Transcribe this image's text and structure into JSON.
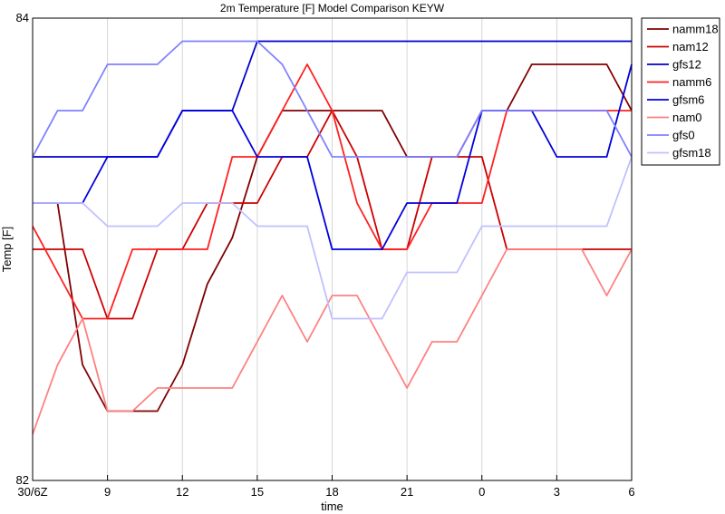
{
  "chart_data": {
    "type": "line",
    "title": "2m Temperature [F] Model Comparison KEYW",
    "xlabel": "time",
    "ylabel": "Temp [F]",
    "ylim": [
      82,
      84
    ],
    "yticks": [
      "82",
      "84"
    ],
    "xticks": [
      "30/6Z",
      "9",
      "12",
      "15",
      "18",
      "21",
      "0",
      "3",
      "6"
    ],
    "x": [
      "30/6Z",
      "7",
      "8",
      "9",
      "10",
      "11",
      "12",
      "13",
      "14",
      "15",
      "16",
      "17",
      "18",
      "19",
      "20",
      "21",
      "22",
      "23",
      "0",
      "1",
      "2",
      "3",
      "4",
      "5",
      "6"
    ],
    "grid": true,
    "legend_position": "top-right",
    "series": [
      {
        "name": "namm18",
        "color": "#800000",
        "values": [
          83.2,
          83.2,
          82.5,
          82.3,
          82.3,
          82.3,
          82.5,
          82.85,
          83.05,
          83.4,
          83.6,
          83.6,
          83.6,
          83.6,
          83.6,
          83.4,
          83.4,
          83.4,
          83.6,
          83.6,
          83.8,
          83.8,
          83.8,
          83.8,
          83.6
        ]
      },
      {
        "name": "nam12",
        "color": "#cc0000",
        "values": [
          83.0,
          83.0,
          83.0,
          82.7,
          82.7,
          83.0,
          83.0,
          83.2,
          83.2,
          83.2,
          83.4,
          83.4,
          83.6,
          83.4,
          83.0,
          83.0,
          83.4,
          83.4,
          83.4,
          83.0,
          83.0,
          83.0,
          83.0,
          83.0,
          83.0
        ]
      },
      {
        "name": "gfs12",
        "color": "#0000cc",
        "values": [
          83.4,
          83.4,
          83.4,
          83.4,
          83.4,
          83.4,
          83.6,
          83.6,
          83.6,
          83.9,
          83.9,
          83.9,
          83.9,
          83.9,
          83.9,
          83.9,
          83.9,
          83.9,
          83.9,
          83.9,
          83.9,
          83.9,
          83.9,
          83.9,
          83.9
        ]
      },
      {
        "name": "namm6",
        "color": "#ff2020",
        "values": [
          83.1,
          82.9,
          82.7,
          82.7,
          83.0,
          83.0,
          83.0,
          83.0,
          83.4,
          83.4,
          83.6,
          83.8,
          83.6,
          83.2,
          83.0,
          83.0,
          83.2,
          83.2,
          83.2,
          83.6,
          83.6,
          83.6,
          83.6,
          83.6,
          83.6
        ]
      },
      {
        "name": "gfsm6",
        "color": "#0000dd",
        "values": [
          83.2,
          83.2,
          83.2,
          83.4,
          83.4,
          83.4,
          83.6,
          83.6,
          83.6,
          83.4,
          83.4,
          83.4,
          83.0,
          83.0,
          83.0,
          83.2,
          83.2,
          83.2,
          83.6,
          83.6,
          83.6,
          83.4,
          83.4,
          83.4,
          83.8
        ]
      },
      {
        "name": "nam0",
        "color": "#ff8080",
        "values": [
          82.2,
          82.5,
          82.7,
          82.3,
          82.3,
          82.4,
          82.4,
          82.4,
          82.4,
          82.6,
          82.8,
          82.6,
          82.8,
          82.8,
          82.6,
          82.4,
          82.6,
          82.6,
          82.8,
          83.0,
          83.0,
          83.0,
          83.0,
          82.8,
          83.0
        ]
      },
      {
        "name": "gfs0",
        "color": "#8080ff",
        "values": [
          83.4,
          83.6,
          83.6,
          83.8,
          83.8,
          83.8,
          83.9,
          83.9,
          83.9,
          83.9,
          83.8,
          83.6,
          83.4,
          83.4,
          83.4,
          83.4,
          83.4,
          83.4,
          83.6,
          83.6,
          83.6,
          83.6,
          83.6,
          83.6,
          83.4
        ]
      },
      {
        "name": "gfsm18",
        "color": "#c0c0ff",
        "values": [
          83.2,
          83.2,
          83.2,
          83.1,
          83.1,
          83.1,
          83.2,
          83.2,
          83.2,
          83.1,
          83.1,
          83.1,
          82.7,
          82.7,
          82.7,
          82.9,
          82.9,
          82.9,
          83.1,
          83.1,
          83.1,
          83.1,
          83.1,
          83.1,
          83.4
        ]
      }
    ]
  }
}
